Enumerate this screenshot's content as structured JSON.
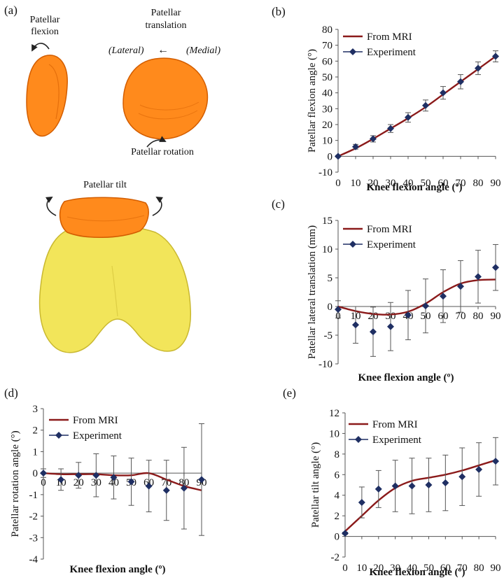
{
  "colors": {
    "line": "#8b1a1a",
    "marker": "#1f2f63",
    "axis": "#555555",
    "patella": "#ff8a1c",
    "patella_dark": "#d35d00",
    "femur": "#f2e55a",
    "femur_dark": "#c9b830"
  },
  "illustration": {
    "panel_label": "(a)",
    "flexion_title": [
      "Patellar",
      "flexion"
    ],
    "translation_title": [
      "Patellar",
      "translation"
    ],
    "lateral": "(Lateral)",
    "arrow_glyph": "←",
    "medial": "(Medial)",
    "rotation_label": "Patellar rotation",
    "tilt_label": "Patellar tilt"
  },
  "chart_data": [
    {
      "id": "b",
      "panel_label": "(b)",
      "type": "line",
      "ylabel": "Patellar flexion angle (°)",
      "xlabel": "Knee flexion angle (º)",
      "xlim": [
        0,
        90
      ],
      "ylim": [
        -10,
        80
      ],
      "xticks": [
        0,
        10,
        20,
        30,
        40,
        50,
        60,
        70,
        80,
        90
      ],
      "yticks": [
        -10,
        0,
        10,
        20,
        30,
        40,
        50,
        60,
        70,
        80
      ],
      "legend": [
        "From MRI",
        "Experiment"
      ],
      "mri": {
        "x": [
          0,
          10,
          20,
          30,
          40,
          50,
          60,
          70,
          80,
          90
        ],
        "y": [
          0,
          5,
          11,
          17.5,
          24,
          31,
          39,
          47,
          55,
          63
        ]
      },
      "experiment": {
        "x": [
          0,
          10,
          20,
          30,
          40,
          50,
          60,
          70,
          80,
          90
        ],
        "y": [
          0,
          6,
          11,
          17.5,
          24.5,
          32,
          40,
          47,
          55.5,
          63
        ],
        "err": [
          0.5,
          1.5,
          2,
          2.5,
          3,
          3.5,
          4,
          4.5,
          4,
          3.5
        ]
      }
    },
    {
      "id": "c",
      "panel_label": "(c)",
      "type": "line",
      "ylabel": "Patellar lateral translation (mm)",
      "xlabel": "Knee flexion angle (º)",
      "xlim": [
        0,
        90
      ],
      "ylim": [
        -10,
        15
      ],
      "xticks": [
        0,
        10,
        20,
        30,
        40,
        50,
        60,
        70,
        80,
        90
      ],
      "yticks": [
        -10,
        -5,
        0,
        5,
        10,
        15
      ],
      "legend": [
        "From MRI",
        "Experiment"
      ],
      "mri": {
        "x": [
          0,
          10,
          20,
          30,
          40,
          50,
          60,
          70,
          80,
          90
        ],
        "y": [
          0,
          -0.8,
          -1.3,
          -1.4,
          -0.9,
          0.5,
          2.5,
          4.0,
          4.6,
          4.7
        ]
      },
      "experiment": {
        "x": [
          0,
          10,
          20,
          30,
          40,
          50,
          60,
          70,
          80,
          90
        ],
        "y": [
          -0.5,
          -3.2,
          -4.4,
          -3.5,
          -1.5,
          0.1,
          1.8,
          3.5,
          5.2,
          6.8
        ],
        "err": [
          1.5,
          3.2,
          4.3,
          4.2,
          4.3,
          4.7,
          4.6,
          4.5,
          4.6,
          4.0
        ]
      }
    },
    {
      "id": "d",
      "panel_label": "(d)",
      "type": "line",
      "ylabel": "Patellar rotation angle (°)",
      "xlabel": "Knee flexion angle (º)",
      "xlim": [
        0,
        90
      ],
      "ylim": [
        -4,
        3
      ],
      "xticks": [
        0,
        10,
        20,
        30,
        40,
        50,
        60,
        70,
        80,
        90
      ],
      "yticks": [
        -4,
        -3,
        -2,
        -1,
        0,
        1,
        2,
        3
      ],
      "legend": [
        "From MRI",
        "Experiment"
      ],
      "mri": {
        "x": [
          0,
          10,
          20,
          30,
          40,
          50,
          60,
          70,
          80,
          90
        ],
        "y": [
          0,
          -0.05,
          -0.05,
          -0.05,
          -0.1,
          -0.1,
          0,
          -0.3,
          -0.6,
          -0.8
        ]
      },
      "experiment": {
        "x": [
          0,
          10,
          20,
          30,
          40,
          50,
          60,
          70,
          80,
          90
        ],
        "y": [
          0,
          -0.3,
          -0.1,
          -0.1,
          -0.2,
          -0.4,
          -0.6,
          -0.8,
          -0.7,
          -0.3
        ],
        "err": [
          0.2,
          0.5,
          0.6,
          1.0,
          1.0,
          1.1,
          1.2,
          1.4,
          1.9,
          2.6
        ]
      }
    },
    {
      "id": "e",
      "panel_label": "(e)",
      "type": "line",
      "ylabel": "Patellar tilt angle (°)",
      "xlabel": "Knee flexion angle (º)",
      "xlim": [
        0,
        90
      ],
      "ylim": [
        -2,
        12
      ],
      "xticks": [
        0,
        10,
        20,
        30,
        40,
        50,
        60,
        70,
        80,
        90
      ],
      "yticks": [
        -2,
        0,
        2,
        4,
        6,
        8,
        10,
        12
      ],
      "legend": [
        "From MRI",
        "Experiment"
      ],
      "mri": {
        "x": [
          0,
          10,
          20,
          30,
          40,
          50,
          60,
          70,
          80,
          90
        ],
        "y": [
          0.5,
          2,
          3.5,
          4.7,
          5.4,
          5.7,
          6.0,
          6.4,
          6.9,
          7.4
        ]
      },
      "experiment": {
        "x": [
          0,
          10,
          20,
          30,
          40,
          50,
          60,
          70,
          80,
          90
        ],
        "y": [
          0.3,
          3.3,
          4.6,
          4.9,
          4.9,
          5.0,
          5.2,
          5.8,
          6.5,
          7.3
        ],
        "err": [
          0.1,
          1.5,
          1.8,
          2.5,
          2.7,
          2.6,
          2.7,
          2.8,
          2.6,
          2.3
        ]
      }
    }
  ]
}
